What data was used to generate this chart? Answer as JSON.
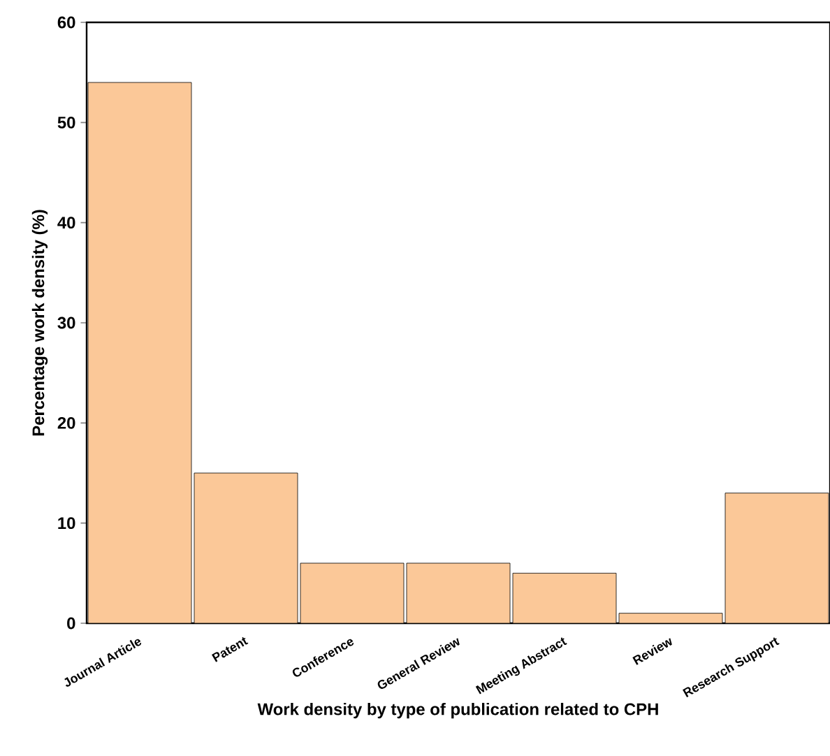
{
  "chart_data": {
    "type": "bar",
    "xlabel": "Work density by type of publication related to CPH",
    "ylabel": "Percentage work density (%)",
    "categories": [
      "Journal Article",
      "Patent",
      "Conference",
      "General Review",
      "Meeting Abstract",
      "Review",
      "Research Support"
    ],
    "values": [
      54,
      15,
      6,
      6,
      5,
      1,
      13
    ],
    "color": "#fbc898",
    "ylim": [
      0,
      60
    ],
    "yticks": [
      0,
      10,
      20,
      30,
      40,
      50,
      60
    ],
    "grid": false
  }
}
